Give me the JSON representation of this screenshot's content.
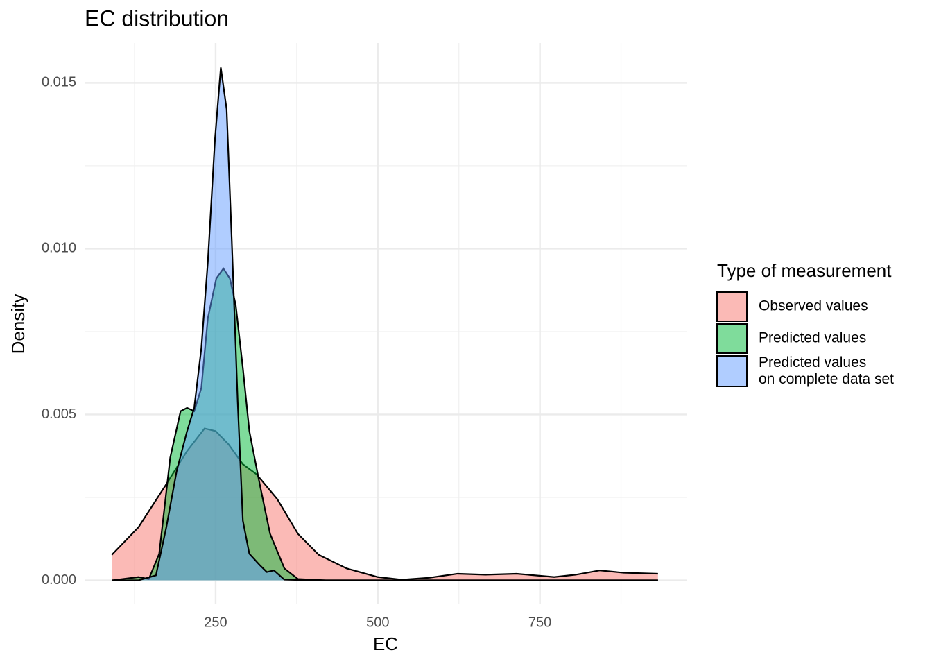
{
  "chart_data": {
    "type": "density",
    "title": "EC distribution",
    "x_label": "EC",
    "y_label": "Density",
    "legend_title": "Type of measurement",
    "legend_position": "right",
    "grid": true,
    "xlim": [
      48,
      976
    ],
    "ylim": [
      -0.0007,
      0.0162
    ],
    "xticks": [
      250,
      500,
      750
    ],
    "yticks": [
      {
        "value": 0,
        "label": "0.000"
      },
      {
        "value": 0.005,
        "label": "0.005"
      },
      {
        "value": 0.01,
        "label": "0.010"
      },
      {
        "value": 0.015,
        "label": "0.015"
      }
    ],
    "x_minor_grid": [
      125,
      375,
      625,
      875
    ],
    "y_minor_grid": [
      0.0025,
      0.0075,
      0.0125
    ],
    "fill_opacity": 0.5,
    "series": [
      {
        "name": "Observed values",
        "color": "#F8766D",
        "x": [
          90,
          131,
          174,
          206,
          233,
          250,
          270,
          292,
          313,
          345,
          377,
          409,
          452,
          500,
          537,
          580,
          623,
          666,
          714,
          772,
          805,
          842,
          879,
          932
        ],
        "values": [
          0.00077,
          0.0016,
          0.0029,
          0.0039,
          0.00458,
          0.0045,
          0.0041,
          0.0035,
          0.0032,
          0.00245,
          0.0014,
          0.00077,
          0.00036,
          0.0001,
          2e-05,
          8e-05,
          0.0002,
          0.00017,
          0.0002,
          0.0001,
          0.00017,
          0.0003,
          0.00023,
          0.0002
        ]
      },
      {
        "name": "Predicted values",
        "color": "#00BA38",
        "x": [
          90,
          131,
          147,
          163,
          180,
          196,
          206,
          217,
          228,
          238,
          251,
          262,
          272,
          281,
          292,
          302,
          318,
          334,
          356,
          377,
          420,
          932
        ],
        "values": [
          0,
          0.0001,
          4e-05,
          0.0008,
          0.0037,
          0.0051,
          0.0052,
          0.0051,
          0.0058,
          0.0079,
          0.0091,
          0.0094,
          0.0091,
          0.0083,
          0.0064,
          0.0045,
          0.0029,
          0.0014,
          0.00036,
          4e-05,
          0,
          0
        ]
      },
      {
        "name": "Predicted values\non complete data set",
        "color": "#619CFF",
        "x": [
          90,
          131,
          158,
          174,
          190,
          206,
          217,
          228,
          238,
          249,
          258,
          267,
          275,
          284,
          292,
          302,
          318,
          329,
          340,
          356,
          400,
          932
        ],
        "values": [
          0,
          0,
          0.00015,
          0.0016,
          0.0033,
          0.0045,
          0.0052,
          0.007,
          0.0096,
          0.0133,
          0.01546,
          0.0142,
          0.0102,
          0.0054,
          0.0018,
          0.0008,
          0.00046,
          0.00025,
          0.0003,
          2e-05,
          0,
          0
        ]
      }
    ]
  }
}
